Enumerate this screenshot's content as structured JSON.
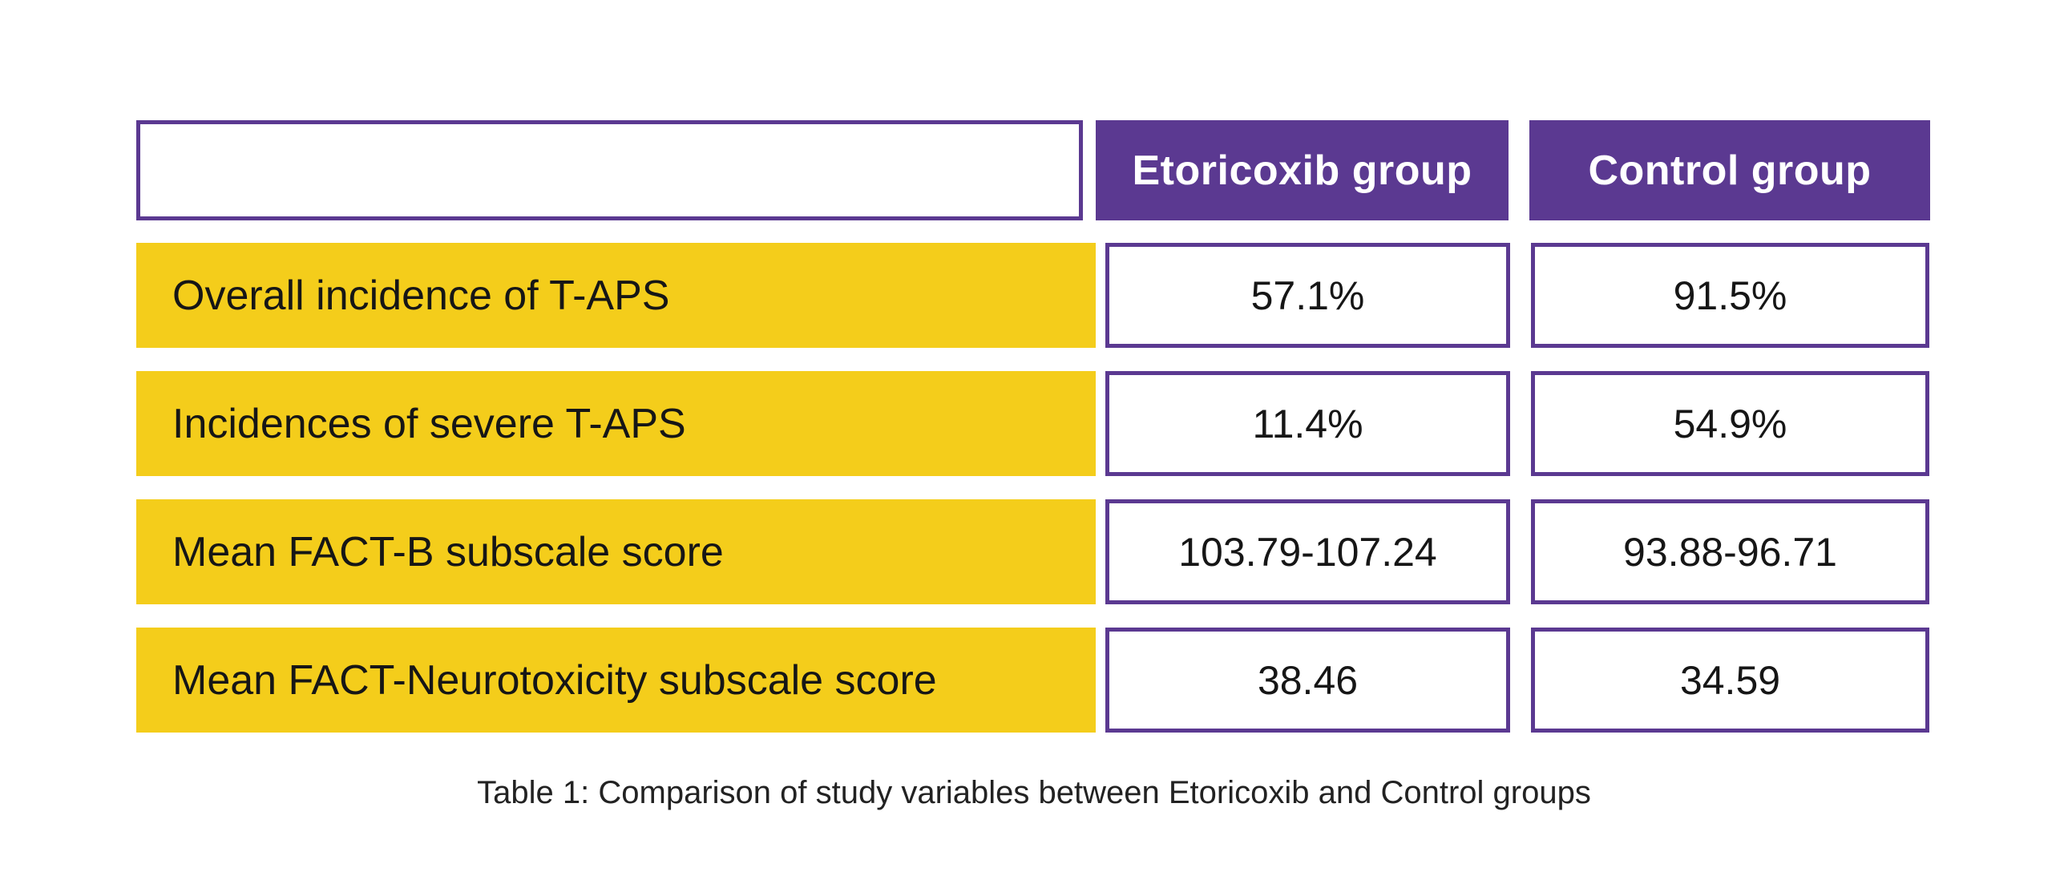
{
  "chart_data": {
    "type": "table",
    "caption": "Table 1: Comparison of study variables between Etoricoxib and Control groups",
    "columns": [
      "",
      "Etoricoxib group",
      "Control group"
    ],
    "rows": [
      [
        "Overall incidence of T-APS",
        "57.1%",
        "91.5%"
      ],
      [
        "Incidences of severe T-APS",
        "11.4%",
        "54.9%"
      ],
      [
        "Mean FACT-B subscale score",
        "103.79-107.24",
        "93.88-96.71"
      ],
      [
        "Mean FACT-Neurotoxicity subscale score",
        "38.46",
        "34.59"
      ]
    ],
    "layout": {
      "legend": "none",
      "grid": "off",
      "header_style": "solid purple blocks, white bold text",
      "row_label_style": "solid yellow blocks, black text",
      "value_cell_style": "white with purple border, centered black text"
    }
  },
  "colors": {
    "purple": "#5b3991",
    "yellow": "#f4cd1b",
    "text": "#161616",
    "background": "#ffffff"
  }
}
